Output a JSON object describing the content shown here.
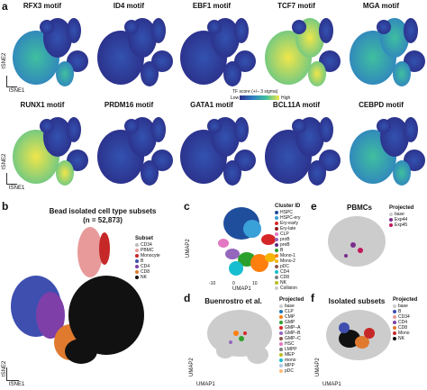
{
  "panels": {
    "a": "a",
    "b": "b",
    "c": "c",
    "d": "d",
    "e": "e",
    "f": "f"
  },
  "motif_row1": [
    "RFX3 motif",
    "ID4 motif",
    "EBF1 motif",
    "TCF7 motif",
    "MGA motif"
  ],
  "motif_row2": [
    "RUNX1 motif",
    "PRDM16 motif",
    "GATA1 motif",
    "BCL11A motif",
    "CEBPD motif"
  ],
  "axes": {
    "tsne2": "tSNE2",
    "tsne1": "tSNE1",
    "umap2": "UMAP2",
    "umap1": "UMAP1"
  },
  "colorbar": {
    "title": "TF score (+/– 3 sigma)",
    "low": "Low",
    "high": "High",
    "colors": [
      "#2b2d8f",
      "#2f7fc1",
      "#3fbf9f",
      "#f0e64a"
    ]
  },
  "panel_b": {
    "title": "Bead isolated cell type subsets",
    "subtitle": "(n = 52,873)",
    "legend_title": "Subset",
    "legend": [
      {
        "label": "CD34",
        "color": "#bdbdbd"
      },
      {
        "label": "PBMC",
        "color": "#e89a9a"
      },
      {
        "label": "Monocyte",
        "color": "#c62828"
      },
      {
        "label": "B",
        "color": "#3e4fb0"
      },
      {
        "label": "CD4",
        "color": "#7e3fa8"
      },
      {
        "label": "CD8",
        "color": "#e07a2f"
      },
      {
        "label": "NK",
        "color": "#111111"
      }
    ]
  },
  "panel_c": {
    "legend_title": "Cluster ID",
    "ticks_x": [
      "-10",
      "0",
      "10"
    ],
    "legend": [
      {
        "label": "HSPC",
        "color": "#1f4e9c"
      },
      {
        "label": "HSPC-ery",
        "color": "#3aa0d8"
      },
      {
        "label": "Ery-early",
        "color": "#d62728"
      },
      {
        "label": "Ery-late",
        "color": "#8b1a1a"
      },
      {
        "label": "CLP",
        "color": "#e377c2"
      },
      {
        "label": "proB",
        "color": "#9467bd"
      },
      {
        "label": "preB",
        "color": "#5a2d82"
      },
      {
        "label": "B",
        "color": "#2ca02c"
      },
      {
        "label": "Mono-1",
        "color": "#ff7f0e"
      },
      {
        "label": "Mono-2",
        "color": "#f4b400"
      },
      {
        "label": "pDC",
        "color": "#8c564b"
      },
      {
        "label": "CD4",
        "color": "#17becf"
      },
      {
        "label": "CD8",
        "color": "#7f7f7f"
      },
      {
        "label": "NK",
        "color": "#bcbd22"
      },
      {
        "label": "Collision",
        "color": "#cccccc"
      }
    ]
  },
  "panel_d": {
    "title": "Buenrostro et al.",
    "legend_title": "Projected",
    "legend": [
      {
        "label": "base",
        "color": "#cccccc"
      },
      {
        "label": "CLP",
        "color": "#1f77b4"
      },
      {
        "label": "CMP",
        "color": "#ff7f0e"
      },
      {
        "label": "GMP",
        "color": "#2ca02c"
      },
      {
        "label": "GMP–A",
        "color": "#d62728"
      },
      {
        "label": "GMP–B",
        "color": "#9467bd"
      },
      {
        "label": "GMP–C",
        "color": "#8c564b"
      },
      {
        "label": "HSC",
        "color": "#e377c2"
      },
      {
        "label": "LMPP",
        "color": "#7f7f7f"
      },
      {
        "label": "MEP",
        "color": "#bcbd22"
      },
      {
        "label": "mono",
        "color": "#17becf"
      },
      {
        "label": "MPP",
        "color": "#aec7e8"
      },
      {
        "label": "pDC",
        "color": "#ffbb78"
      }
    ]
  },
  "panel_e": {
    "title": "PBMCs",
    "legend_title": "Projected",
    "legend": [
      {
        "label": "base",
        "color": "#cccccc"
      },
      {
        "label": "Exp44",
        "color": "#7b2d8e"
      },
      {
        "label": "Exp45",
        "color": "#c2185b"
      }
    ]
  },
  "panel_f": {
    "title": "Isolated subsets",
    "legend_title": "Projected",
    "legend": [
      {
        "label": "base",
        "color": "#cccccc"
      },
      {
        "label": "B",
        "color": "#3e4fb0"
      },
      {
        "label": "CD34",
        "color": "#e89a9a"
      },
      {
        "label": "CD4",
        "color": "#7e3fa8"
      },
      {
        "label": "CD8",
        "color": "#e07a2f"
      },
      {
        "label": "Mono",
        "color": "#c62828"
      },
      {
        "label": "NK",
        "color": "#111111"
      }
    ]
  }
}
